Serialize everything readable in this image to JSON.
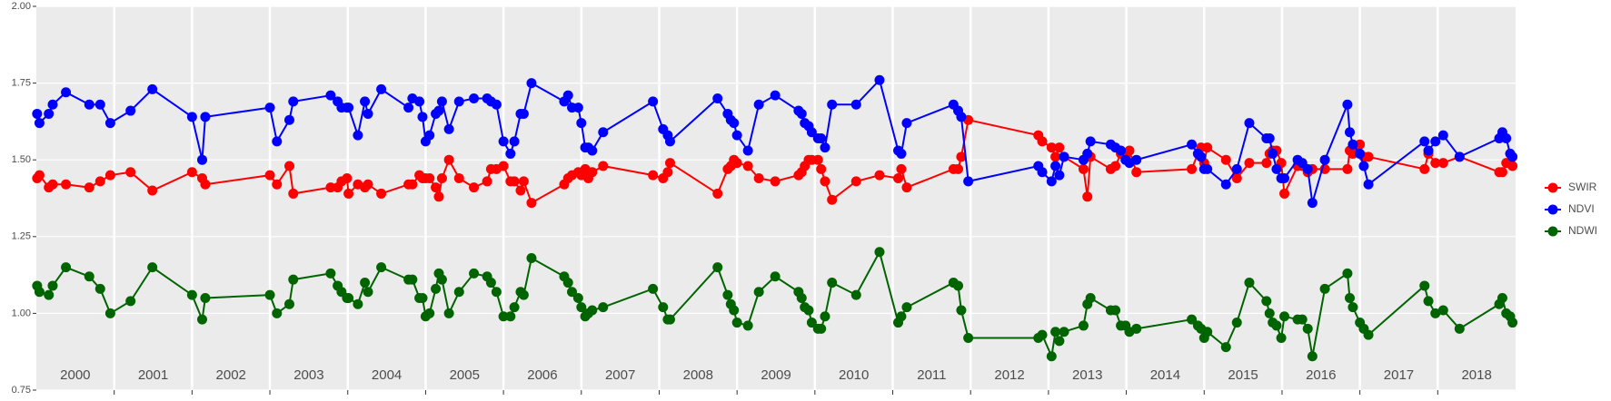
{
  "chart_data": {
    "type": "line",
    "x": [
      2000.01,
      2000.04,
      2000.16,
      2000.21,
      2000.38,
      2000.68,
      2000.82,
      2000.95,
      2001.21,
      2001.49,
      2002.0,
      2002.13,
      2002.17,
      2003.0,
      2003.09,
      2003.25,
      2003.3,
      2003.78,
      2003.87,
      2003.92,
      2003.99,
      2004.01,
      2004.13,
      2004.22,
      2004.26,
      2004.43,
      2004.78,
      2004.83,
      2004.92,
      2004.96,
      2005.0,
      2005.05,
      2005.13,
      2005.17,
      2005.21,
      2005.3,
      2005.43,
      2005.62,
      2005.79,
      2005.84,
      2005.91,
      2006.0,
      2006.09,
      2006.14,
      2006.22,
      2006.26,
      2006.36,
      2006.78,
      2006.83,
      2006.88,
      2006.96,
      2007.0,
      2007.05,
      2007.09,
      2007.14,
      2007.28,
      2007.92,
      2008.05,
      2008.11,
      2008.14,
      2008.75,
      2008.88,
      2008.92,
      2008.96,
      2009.0,
      2009.14,
      2009.28,
      2009.49,
      2009.79,
      2009.83,
      2009.87,
      2009.92,
      2009.96,
      2010.04,
      2010.08,
      2010.13,
      2010.22,
      2010.53,
      2010.83,
      2011.07,
      2011.11,
      2011.18,
      2011.78,
      2011.84,
      2011.88,
      2011.97,
      2012.87,
      2012.92,
      2013.04,
      2013.09,
      2013.14,
      2013.2,
      2013.45,
      2013.5,
      2013.54,
      2013.8,
      2013.86,
      2013.93,
      2013.99,
      2014.04,
      2014.13,
      2014.84,
      2014.92,
      2014.96,
      2015.0,
      2015.04,
      2015.28,
      2015.42,
      2015.58,
      2015.8,
      2015.84,
      2015.88,
      2015.93,
      2015.99,
      2016.03,
      2016.2,
      2016.26,
      2016.33,
      2016.39,
      2016.55,
      2016.84,
      2016.87,
      2016.91,
      2017.0,
      2017.05,
      2017.11,
      2017.83,
      2017.88,
      2017.97,
      2018.07,
      2018.28,
      2018.79,
      2018.83,
      2018.88,
      2018.93,
      2018.96
    ],
    "series": [
      {
        "name": "SWIR",
        "color": "#ff0000",
        "values": [
          1.44,
          1.45,
          1.41,
          1.42,
          1.42,
          1.41,
          1.43,
          1.45,
          1.46,
          1.4,
          1.46,
          1.44,
          1.42,
          1.45,
          1.42,
          1.48,
          1.39,
          1.41,
          1.41,
          1.43,
          1.44,
          1.39,
          1.42,
          1.41,
          1.42,
          1.39,
          1.42,
          1.42,
          1.45,
          1.44,
          1.44,
          1.44,
          1.41,
          1.38,
          1.44,
          1.5,
          1.44,
          1.41,
          1.43,
          1.47,
          1.47,
          1.48,
          1.43,
          1.43,
          1.4,
          1.43,
          1.36,
          1.42,
          1.44,
          1.45,
          1.46,
          1.45,
          1.47,
          1.44,
          1.46,
          1.48,
          1.45,
          1.44,
          1.46,
          1.49,
          1.39,
          1.47,
          1.48,
          1.5,
          1.49,
          1.48,
          1.44,
          1.43,
          1.45,
          1.46,
          1.48,
          1.5,
          1.5,
          1.5,
          1.47,
          1.43,
          1.37,
          1.43,
          1.45,
          1.44,
          1.47,
          1.41,
          1.47,
          1.47,
          1.51,
          1.63,
          1.58,
          1.56,
          1.54,
          1.51,
          1.54,
          1.51,
          1.47,
          1.38,
          1.51,
          1.47,
          1.48,
          1.52,
          1.51,
          1.53,
          1.46,
          1.47,
          1.52,
          1.54,
          1.49,
          1.54,
          1.5,
          1.44,
          1.49,
          1.49,
          1.52,
          1.53,
          1.53,
          1.49,
          1.39,
          1.48,
          1.48,
          1.46,
          1.47,
          1.47,
          1.47,
          1.53,
          1.52,
          1.55,
          1.51,
          1.51,
          1.47,
          1.52,
          1.49,
          1.49,
          1.51,
          1.46,
          1.46,
          1.49,
          1.49,
          1.48
        ]
      },
      {
        "name": "NDVI",
        "color": "#0000ff",
        "values": [
          1.65,
          1.62,
          1.65,
          1.68,
          1.72,
          1.68,
          1.68,
          1.62,
          1.66,
          1.73,
          1.64,
          1.5,
          1.64,
          1.67,
          1.56,
          1.63,
          1.69,
          1.71,
          1.69,
          1.67,
          1.67,
          1.67,
          1.58,
          1.69,
          1.65,
          1.73,
          1.67,
          1.7,
          1.69,
          1.64,
          1.56,
          1.58,
          1.65,
          1.66,
          1.69,
          1.6,
          1.69,
          1.7,
          1.7,
          1.69,
          1.68,
          1.56,
          1.52,
          1.56,
          1.65,
          1.65,
          1.75,
          1.69,
          1.71,
          1.67,
          1.67,
          1.62,
          1.54,
          1.54,
          1.53,
          1.59,
          1.69,
          1.6,
          1.58,
          1.56,
          1.7,
          1.65,
          1.63,
          1.62,
          1.58,
          1.53,
          1.68,
          1.71,
          1.66,
          1.65,
          1.62,
          1.61,
          1.59,
          1.57,
          1.57,
          1.54,
          1.68,
          1.68,
          1.76,
          1.53,
          1.52,
          1.62,
          1.68,
          1.66,
          1.64,
          1.43,
          1.48,
          1.46,
          1.43,
          1.48,
          1.45,
          1.51,
          1.5,
          1.52,
          1.56,
          1.55,
          1.54,
          1.53,
          1.5,
          1.49,
          1.5,
          1.55,
          1.52,
          1.51,
          1.47,
          1.47,
          1.42,
          1.47,
          1.62,
          1.57,
          1.57,
          1.52,
          1.47,
          1.44,
          1.44,
          1.5,
          1.49,
          1.47,
          1.36,
          1.5,
          1.68,
          1.59,
          1.55,
          1.52,
          1.48,
          1.42,
          1.56,
          1.53,
          1.56,
          1.58,
          1.51,
          1.57,
          1.59,
          1.57,
          1.52,
          1.51
        ]
      },
      {
        "name": "NDWI",
        "color": "#006400",
        "values": [
          1.09,
          1.07,
          1.06,
          1.09,
          1.15,
          1.12,
          1.08,
          1.0,
          1.04,
          1.15,
          1.06,
          0.98,
          1.05,
          1.06,
          1.0,
          1.03,
          1.11,
          1.13,
          1.09,
          1.07,
          1.05,
          1.05,
          1.03,
          1.1,
          1.07,
          1.15,
          1.11,
          1.11,
          1.05,
          1.05,
          0.99,
          1.0,
          1.08,
          1.13,
          1.11,
          1.0,
          1.07,
          1.13,
          1.12,
          1.1,
          1.07,
          0.99,
          0.99,
          1.02,
          1.07,
          1.06,
          1.18,
          1.12,
          1.1,
          1.07,
          1.05,
          1.02,
          0.99,
          1.0,
          1.01,
          1.02,
          1.08,
          1.02,
          0.98,
          0.98,
          1.15,
          1.06,
          1.03,
          1.01,
          0.97,
          0.96,
          1.07,
          1.12,
          1.07,
          1.05,
          1.02,
          1.01,
          0.97,
          0.95,
          0.95,
          0.99,
          1.1,
          1.06,
          1.2,
          0.97,
          0.99,
          1.02,
          1.1,
          1.09,
          1.01,
          0.92,
          0.92,
          0.93,
          0.86,
          0.94,
          0.91,
          0.94,
          0.96,
          1.03,
          1.05,
          1.01,
          1.01,
          0.96,
          0.96,
          0.94,
          0.95,
          0.98,
          0.96,
          0.95,
          0.92,
          0.94,
          0.89,
          0.97,
          1.1,
          1.04,
          1.0,
          0.97,
          0.96,
          0.92,
          0.99,
          0.98,
          0.98,
          0.95,
          0.86,
          1.08,
          1.13,
          1.05,
          1.02,
          0.97,
          0.95,
          0.93,
          1.09,
          1.04,
          1.0,
          1.01,
          0.95,
          1.03,
          1.05,
          1.0,
          0.99,
          0.97
        ]
      }
    ],
    "xlim": [
      2000,
      2019
    ],
    "xticks": [
      2001,
      2002,
      2003,
      2004,
      2005,
      2006,
      2007,
      2008,
      2009,
      2010,
      2011,
      2012,
      2013,
      2014,
      2015,
      2016,
      2017,
      2018
    ],
    "ylim": [
      0.75,
      2
    ],
    "yticks": [
      0.75,
      {
        "value": 1,
        "label": "1.00"
      },
      1.25,
      {
        "value": 1.5,
        "label": "1.50"
      },
      1.75,
      {
        "value": 2,
        "label": "2.00"
      }
    ],
    "year_labels": [
      "2000",
      "2001",
      "2002",
      "2003",
      "2004",
      "2005",
      "2006",
      "2007",
      "2008",
      "2009",
      "2010",
      "2011",
      "2012",
      "2013",
      "2014",
      "2015",
      "2016",
      "2017",
      "2018"
    ],
    "grid": true
  }
}
